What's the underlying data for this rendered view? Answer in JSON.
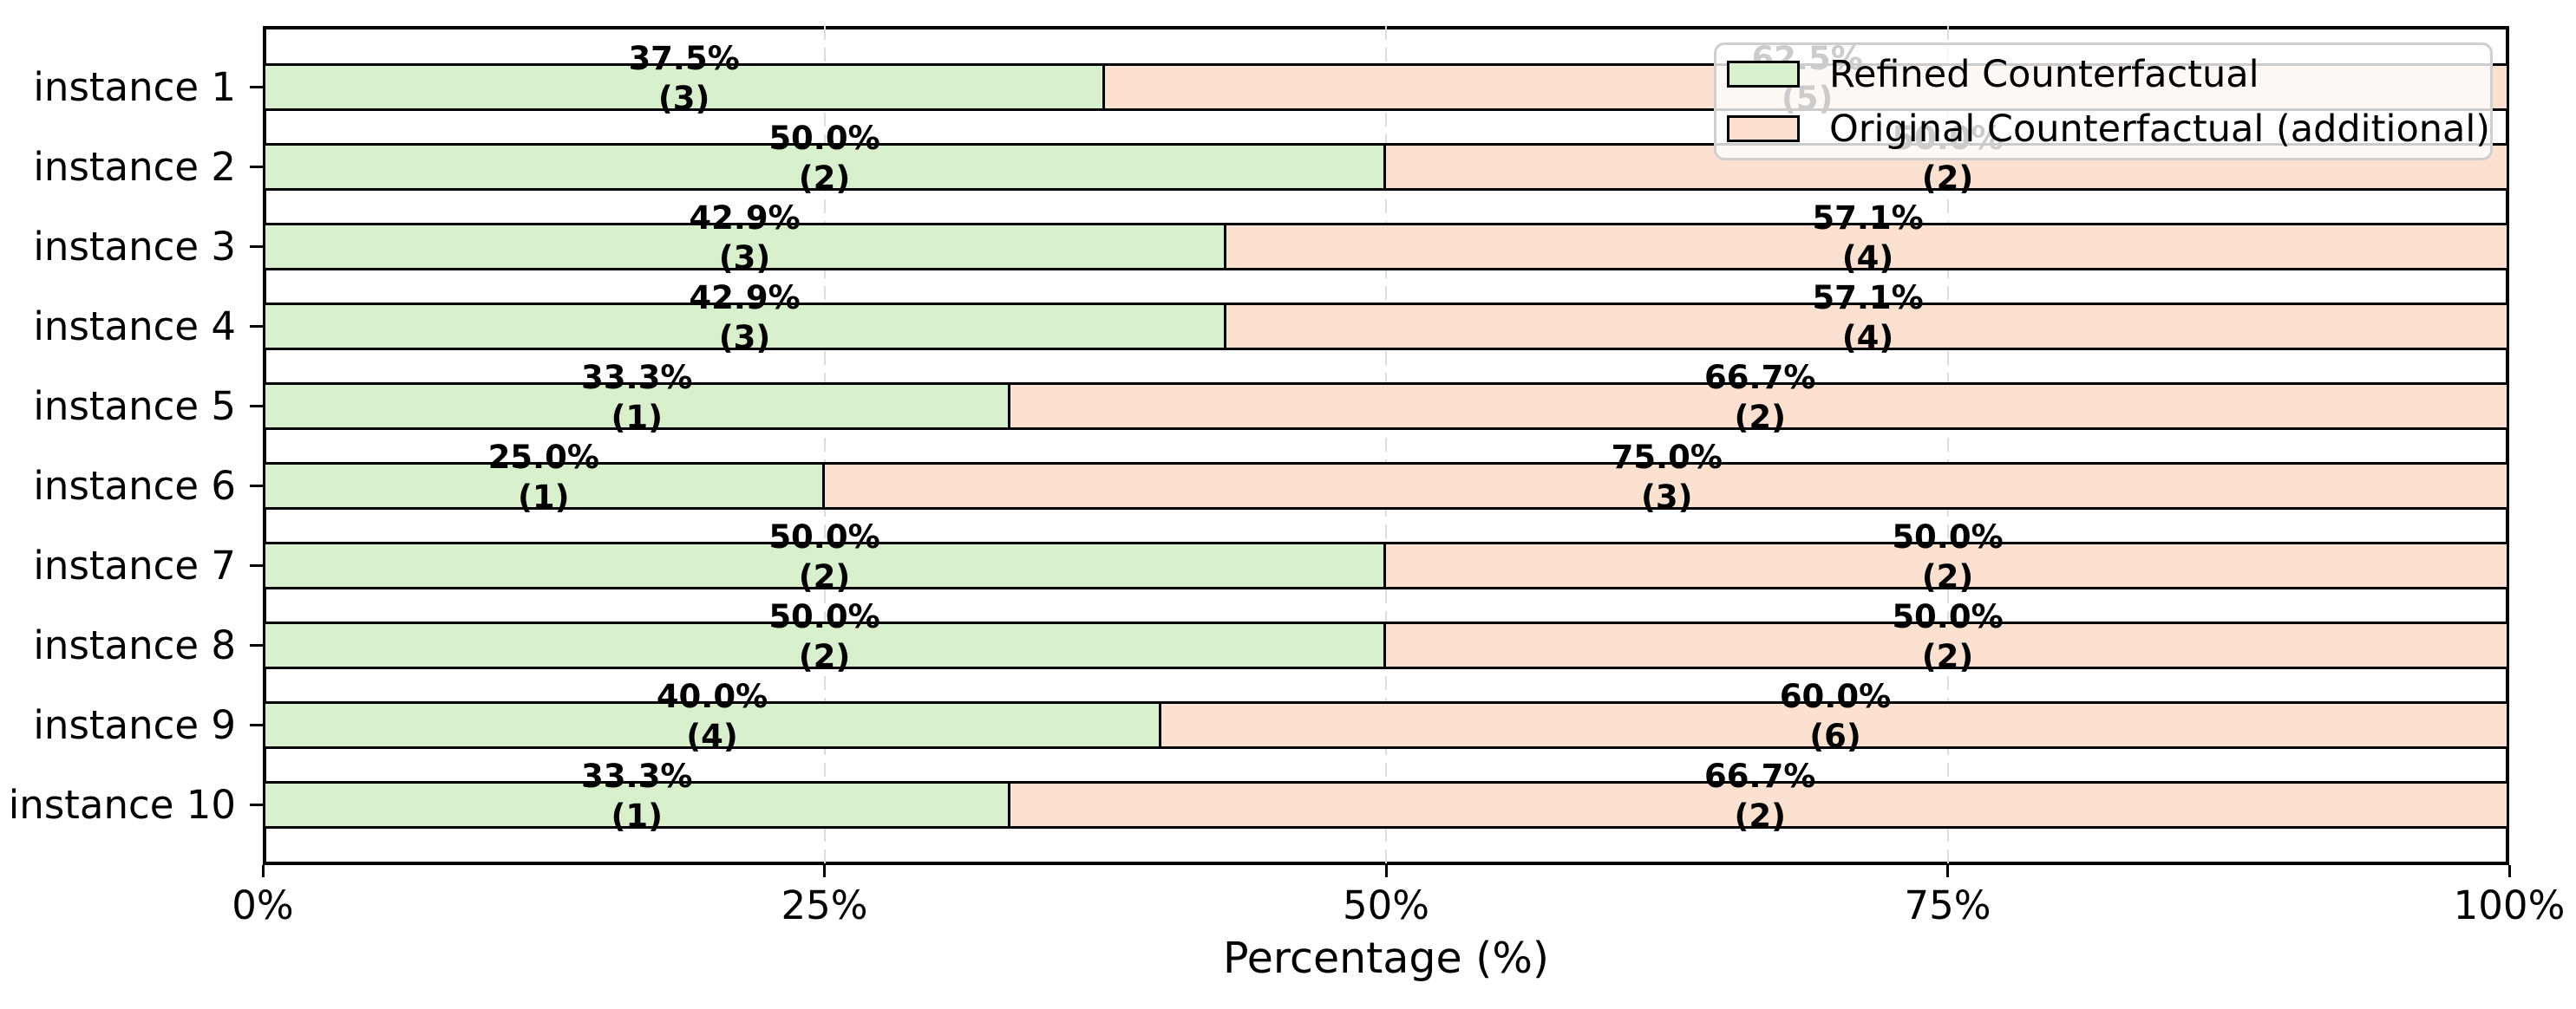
{
  "figure": {
    "background": "#ffffff",
    "xlabel": "Percentage (%)",
    "x_axis": {
      "ticks": [
        {
          "label": "0%",
          "value": 0
        },
        {
          "label": "25%",
          "value": 25
        },
        {
          "label": "50%",
          "value": 50
        },
        {
          "label": "75%",
          "value": 75
        },
        {
          "label": "100%",
          "value": 100
        }
      ]
    },
    "legend": {
      "position": "upper right",
      "entries": [
        {
          "label": "Refined Counterfactual",
          "color": "#d9f0cd"
        },
        {
          "label": "Original Counterfactual (additional)",
          "color": "#fce0d0"
        }
      ]
    },
    "colors": {
      "bar_edge": "#000000",
      "grid": "#dcdcdc",
      "text": "#000000",
      "legend_border": "#cfcfcf",
      "legend_background": "rgba(255,255,255,0.8)"
    }
  },
  "chart_data": {
    "type": "bar",
    "orientation": "horizontal",
    "stacked": true,
    "title": "",
    "xlabel": "Percentage (%)",
    "ylabel": "",
    "xlim": [
      0,
      100
    ],
    "grid": "vertical dashed lines at 25%, 50%, 75%",
    "legend_position": "upper right",
    "categories": [
      "instance 1",
      "instance 2",
      "instance 3",
      "instance 4",
      "instance 5",
      "instance 6",
      "instance 7",
      "instance 8",
      "instance 9",
      "instance 10"
    ],
    "series": [
      {
        "name": "Refined Counterfactual",
        "color": "#d9f0cd",
        "values_pct": [
          37.5,
          50.0,
          42.9,
          42.9,
          33.3,
          25.0,
          50.0,
          50.0,
          40.0,
          33.3
        ],
        "counts": [
          3,
          2,
          3,
          3,
          1,
          1,
          2,
          2,
          4,
          1
        ]
      },
      {
        "name": "Original Counterfactual (additional)",
        "color": "#fce0d0",
        "values_pct": [
          62.5,
          50.0,
          57.1,
          57.1,
          66.7,
          75.0,
          50.0,
          50.0,
          60.0,
          66.7
        ],
        "counts": [
          5,
          2,
          4,
          4,
          2,
          3,
          2,
          2,
          6,
          2
        ]
      }
    ]
  }
}
